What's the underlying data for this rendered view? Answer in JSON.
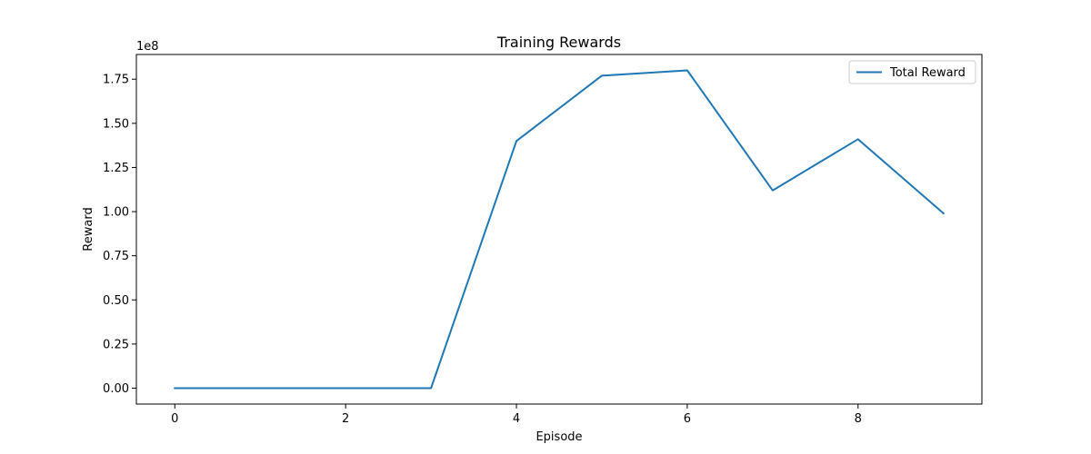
{
  "chart_data": {
    "type": "line",
    "title": "Training Rewards",
    "xlabel": "Episode",
    "ylabel": "Reward",
    "offset_label": "1e8",
    "xlim": [
      -0.45,
      9.45
    ],
    "ylim": [
      -0.09,
      1.89
    ],
    "x_ticks": [
      0,
      2,
      4,
      6,
      8
    ],
    "x_tick_labels": [
      "0",
      "2",
      "4",
      "6",
      "8"
    ],
    "y_ticks": [
      0,
      0.25,
      0.5,
      0.75,
      1.0,
      1.25,
      1.5,
      1.75
    ],
    "y_tick_labels": [
      "0.00",
      "0.25",
      "0.50",
      "0.75",
      "1.00",
      "1.25",
      "1.50",
      "1.75"
    ],
    "grid": false,
    "legend_position": "top-right",
    "series": [
      {
        "name": "Total Reward",
        "color": "#1f77b4",
        "x": [
          0,
          1,
          2,
          3,
          4,
          5,
          6,
          7,
          8,
          9
        ],
        "y": [
          0.0,
          0.0,
          0.0,
          0.0,
          1.4,
          1.77,
          1.8,
          1.12,
          1.41,
          0.99
        ]
      }
    ]
  }
}
